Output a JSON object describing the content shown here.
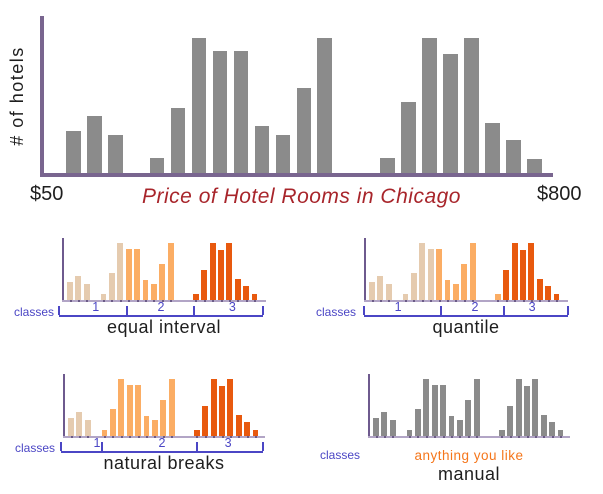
{
  "colors": {
    "bar_gray": "#8b8b8b",
    "main_axis_purple": "#79658f",
    "small_axis_purple": "#6e5a8e",
    "small_baseline_lavender": "#b2a5c6",
    "class_1_tan": "#e5cbaf",
    "class_2_orange": "#fbad64",
    "class_3_dark_orange": "#e8590e",
    "bracket_blue": "#4b46c5",
    "title_red": "#a8252b",
    "note_orange": "#f5761b",
    "text_black": "#1e1e1e"
  },
  "chart_data": {
    "type": "bar",
    "title": "Price of Hotel Rooms in Chicago",
    "ylabel": "# of hotels",
    "x_axis": {
      "min_label": "$50",
      "max_label": "$800"
    },
    "ylim": [
      0,
      135
    ],
    "slot_count": 23,
    "bars": [
      {
        "slot": 0,
        "value": 42
      },
      {
        "slot": 1,
        "value": 57
      },
      {
        "slot": 2,
        "value": 38
      },
      {
        "slot": 4,
        "value": 15
      },
      {
        "slot": 5,
        "value": 65
      },
      {
        "slot": 6,
        "value": 135
      },
      {
        "slot": 7,
        "value": 122
      },
      {
        "slot": 8,
        "value": 122
      },
      {
        "slot": 9,
        "value": 47
      },
      {
        "slot": 10,
        "value": 38
      },
      {
        "slot": 11,
        "value": 85
      },
      {
        "slot": 12,
        "value": 135
      },
      {
        "slot": 15,
        "value": 15
      },
      {
        "slot": 16,
        "value": 71
      },
      {
        "slot": 17,
        "value": 135
      },
      {
        "slot": 18,
        "value": 119
      },
      {
        "slot": 19,
        "value": 135
      },
      {
        "slot": 20,
        "value": 50
      },
      {
        "slot": 21,
        "value": 33
      },
      {
        "slot": 22,
        "value": 14
      }
    ],
    "panels": [
      {
        "id": "equal-interval",
        "title": "equal interval",
        "classes_label": "classes",
        "bar_class": [
          1,
          1,
          1,
          1,
          1,
          1,
          2,
          2,
          2,
          2,
          2,
          2,
          3,
          3,
          3,
          3,
          3,
          3,
          3,
          3
        ],
        "boundaries_pct": [
          0,
          33.3,
          66.2,
          100
        ],
        "class_labels": [
          {
            "text": "1",
            "x_pct": 18
          },
          {
            "text": "2",
            "x_pct": 50
          },
          {
            "text": "3",
            "x_pct": 85
          }
        ]
      },
      {
        "id": "quantile",
        "title": "quantile",
        "classes_label": "classes",
        "bar_class": [
          1,
          1,
          1,
          1,
          1,
          1,
          1,
          2,
          2,
          2,
          2,
          2,
          2,
          3,
          3,
          3,
          3,
          3,
          3,
          3
        ],
        "boundaries_pct": [
          0,
          37.7,
          68.6,
          100
        ],
        "class_labels": [
          {
            "text": "1",
            "x_pct": 16.7
          },
          {
            "text": "2",
            "x_pct": 54.4
          },
          {
            "text": "3",
            "x_pct": 82.4
          }
        ]
      },
      {
        "id": "natural-breaks",
        "title": "natural breaks",
        "classes_label": "classes",
        "bar_class": [
          1,
          1,
          1,
          2,
          2,
          2,
          2,
          2,
          2,
          2,
          2,
          2,
          3,
          3,
          3,
          3,
          3,
          3,
          3,
          3
        ],
        "boundaries_pct": [
          0,
          20.3,
          67.3,
          100
        ],
        "class_labels": [
          {
            "text": "1",
            "x_pct": 17.8
          },
          {
            "text": "2",
            "x_pct": 50
          },
          {
            "text": "3",
            "x_pct": 82.7
          }
        ]
      },
      {
        "id": "manual",
        "title": "manual",
        "classes_label": "classes",
        "bar_class": [
          0,
          0,
          0,
          0,
          0,
          0,
          0,
          0,
          0,
          0,
          0,
          0,
          0,
          0,
          0,
          0,
          0,
          0,
          0,
          0
        ],
        "note": "anything you like"
      }
    ]
  }
}
